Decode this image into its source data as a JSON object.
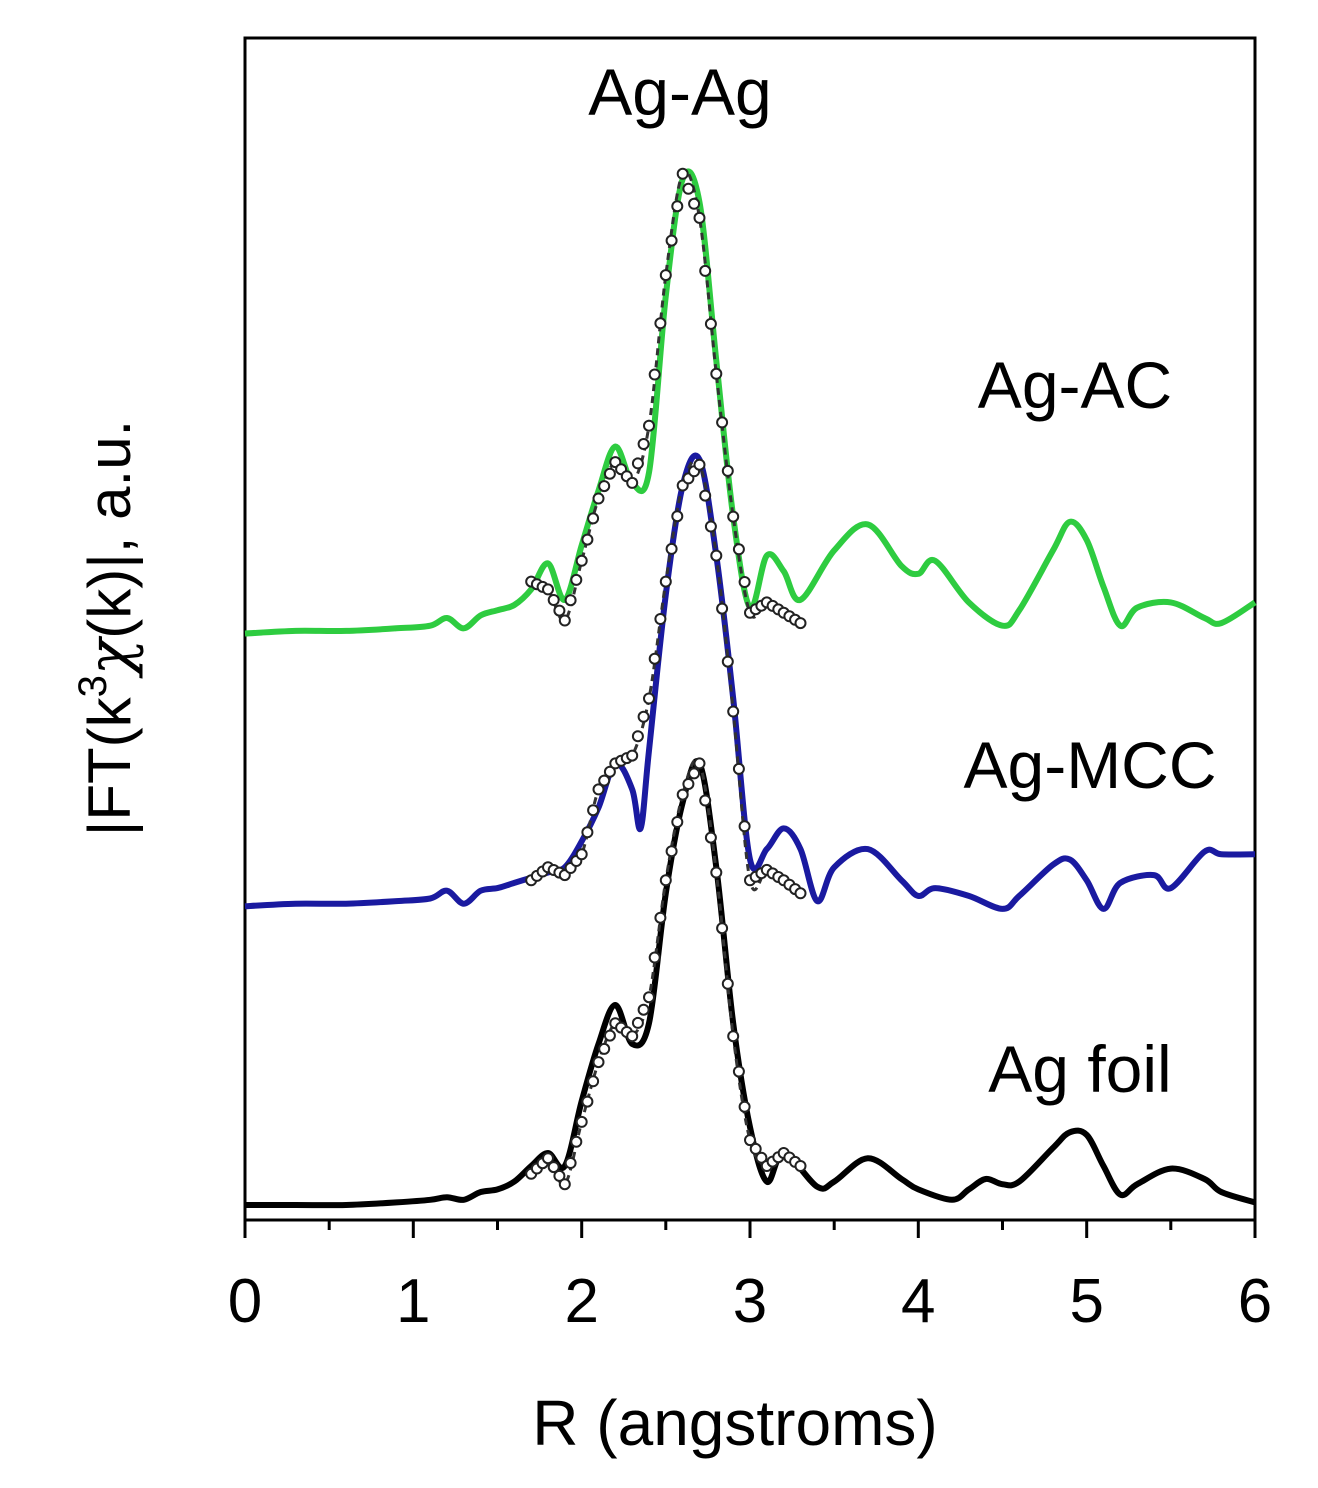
{
  "chart_data": {
    "type": "line",
    "title": "",
    "xlabel": "R (angstroms)",
    "ylabel_parts": {
      "prefix": "|FT(k",
      "superscript": "3",
      "chi": "χ",
      "suffix": "(k)|, a.u."
    },
    "xlim": [
      0,
      6
    ],
    "x_ticks": [
      "0",
      "1",
      "2",
      "3",
      "4",
      "5",
      "6"
    ],
    "grid": false,
    "annotations": [
      {
        "text": "Ag-Ag"
      }
    ],
    "series": [
      {
        "name": "Ag-AC",
        "color": "#2ecc40",
        "style": "solid",
        "offset": 2.2,
        "points": [
          [
            0,
            0.0
          ],
          [
            0.3,
            0.01
          ],
          [
            0.6,
            0.01
          ],
          [
            0.9,
            0.02
          ],
          [
            1.1,
            0.03
          ],
          [
            1.2,
            0.06
          ],
          [
            1.3,
            0.02
          ],
          [
            1.4,
            0.07
          ],
          [
            1.5,
            0.09
          ],
          [
            1.6,
            0.11
          ],
          [
            1.7,
            0.17
          ],
          [
            1.8,
            0.27
          ],
          [
            1.9,
            0.13
          ],
          [
            2.0,
            0.34
          ],
          [
            2.1,
            0.55
          ],
          [
            2.2,
            0.72
          ],
          [
            2.3,
            0.58
          ],
          [
            2.4,
            0.62
          ],
          [
            2.5,
            1.3
          ],
          [
            2.6,
            1.75
          ],
          [
            2.7,
            1.66
          ],
          [
            2.8,
            1.05
          ],
          [
            2.9,
            0.45
          ],
          [
            3.0,
            0.1
          ],
          [
            3.1,
            0.3
          ],
          [
            3.2,
            0.24
          ],
          [
            3.3,
            0.13
          ],
          [
            3.5,
            0.32
          ],
          [
            3.7,
            0.42
          ],
          [
            3.9,
            0.26
          ],
          [
            4.0,
            0.23
          ],
          [
            4.1,
            0.28
          ],
          [
            4.3,
            0.12
          ],
          [
            4.5,
            0.03
          ],
          [
            4.6,
            0.09
          ],
          [
            4.8,
            0.32
          ],
          [
            4.9,
            0.43
          ],
          [
            5.0,
            0.36
          ],
          [
            5.1,
            0.18
          ],
          [
            5.2,
            0.03
          ],
          [
            5.3,
            0.1
          ],
          [
            5.5,
            0.12
          ],
          [
            5.7,
            0.06
          ],
          [
            5.8,
            0.04
          ],
          [
            6.0,
            0.12
          ]
        ]
      },
      {
        "name": "Ag-MCC",
        "color": "#1a1aa0",
        "style": "solid",
        "offset": 1.15,
        "points": [
          [
            0,
            0.0
          ],
          [
            0.3,
            0.01
          ],
          [
            0.6,
            0.01
          ],
          [
            0.9,
            0.02
          ],
          [
            1.1,
            0.03
          ],
          [
            1.2,
            0.06
          ],
          [
            1.3,
            0.01
          ],
          [
            1.4,
            0.06
          ],
          [
            1.5,
            0.07
          ],
          [
            1.6,
            0.09
          ],
          [
            1.7,
            0.11
          ],
          [
            1.8,
            0.13
          ],
          [
            1.9,
            0.15
          ],
          [
            2.0,
            0.25
          ],
          [
            2.1,
            0.38
          ],
          [
            2.2,
            0.55
          ],
          [
            2.3,
            0.45
          ],
          [
            2.35,
            0.3
          ],
          [
            2.4,
            0.6
          ],
          [
            2.5,
            1.2
          ],
          [
            2.6,
            1.62
          ],
          [
            2.7,
            1.72
          ],
          [
            2.8,
            1.35
          ],
          [
            2.9,
            0.8
          ],
          [
            3.0,
            0.18
          ],
          [
            3.1,
            0.22
          ],
          [
            3.2,
            0.3
          ],
          [
            3.3,
            0.22
          ],
          [
            3.4,
            0.02
          ],
          [
            3.5,
            0.15
          ],
          [
            3.7,
            0.22
          ],
          [
            3.9,
            0.1
          ],
          [
            4.0,
            0.04
          ],
          [
            4.1,
            0.07
          ],
          [
            4.3,
            0.04
          ],
          [
            4.5,
            -0.01
          ],
          [
            4.6,
            0.04
          ],
          [
            4.8,
            0.16
          ],
          [
            4.9,
            0.18
          ],
          [
            5.0,
            0.1
          ],
          [
            5.1,
            -0.01
          ],
          [
            5.2,
            0.09
          ],
          [
            5.4,
            0.12
          ],
          [
            5.5,
            0.07
          ],
          [
            5.7,
            0.21
          ],
          [
            5.8,
            0.2
          ],
          [
            6.0,
            0.2
          ]
        ]
      },
      {
        "name": "Ag foil",
        "color": "#000000",
        "style": "solid",
        "offset": 0.0,
        "points": [
          [
            0,
            0.0
          ],
          [
            0.3,
            0.0
          ],
          [
            0.6,
            0.0
          ],
          [
            0.9,
            0.01
          ],
          [
            1.1,
            0.02
          ],
          [
            1.2,
            0.03
          ],
          [
            1.3,
            0.02
          ],
          [
            1.4,
            0.05
          ],
          [
            1.5,
            0.06
          ],
          [
            1.6,
            0.09
          ],
          [
            1.7,
            0.15
          ],
          [
            1.8,
            0.2
          ],
          [
            1.9,
            0.15
          ],
          [
            2.0,
            0.4
          ],
          [
            2.1,
            0.62
          ],
          [
            2.2,
            0.77
          ],
          [
            2.3,
            0.62
          ],
          [
            2.4,
            0.7
          ],
          [
            2.5,
            1.2
          ],
          [
            2.6,
            1.55
          ],
          [
            2.7,
            1.7
          ],
          [
            2.8,
            1.3
          ],
          [
            2.9,
            0.7
          ],
          [
            3.0,
            0.3
          ],
          [
            3.1,
            0.09
          ],
          [
            3.2,
            0.2
          ],
          [
            3.4,
            0.07
          ],
          [
            3.5,
            0.09
          ],
          [
            3.7,
            0.18
          ],
          [
            3.9,
            0.1
          ],
          [
            4.0,
            0.06
          ],
          [
            4.2,
            0.02
          ],
          [
            4.3,
            0.06
          ],
          [
            4.4,
            0.1
          ],
          [
            4.5,
            0.08
          ],
          [
            4.6,
            0.09
          ],
          [
            4.8,
            0.22
          ],
          [
            4.9,
            0.28
          ],
          [
            5.0,
            0.27
          ],
          [
            5.1,
            0.15
          ],
          [
            5.2,
            0.04
          ],
          [
            5.3,
            0.08
          ],
          [
            5.5,
            0.14
          ],
          [
            5.7,
            0.1
          ],
          [
            5.8,
            0.05
          ],
          [
            6.0,
            0.01
          ]
        ]
      },
      {
        "name": "",
        "color": "#333333",
        "style": "dashed-open-circles",
        "offset": 2.2,
        "points": [
          [
            1.7,
            0.2
          ],
          [
            1.8,
            0.17
          ],
          [
            1.9,
            0.05
          ],
          [
            2.0,
            0.28
          ],
          [
            2.1,
            0.52
          ],
          [
            2.2,
            0.66
          ],
          [
            2.3,
            0.58
          ],
          [
            2.4,
            0.8
          ],
          [
            2.5,
            1.38
          ],
          [
            2.6,
            1.77
          ],
          [
            2.7,
            1.6
          ],
          [
            2.8,
            1.0
          ],
          [
            2.9,
            0.45
          ],
          [
            3.0,
            0.08
          ],
          [
            3.1,
            0.12
          ],
          [
            3.2,
            0.08
          ],
          [
            3.3,
            0.04
          ]
        ]
      },
      {
        "name": "",
        "color": "#333333",
        "style": "dashed-open-circles",
        "offset": 1.15,
        "points": [
          [
            1.7,
            0.1
          ],
          [
            1.8,
            0.15
          ],
          [
            1.9,
            0.12
          ],
          [
            2.0,
            0.2
          ],
          [
            2.1,
            0.45
          ],
          [
            2.2,
            0.55
          ],
          [
            2.3,
            0.58
          ],
          [
            2.4,
            0.8
          ],
          [
            2.5,
            1.25
          ],
          [
            2.6,
            1.62
          ],
          [
            2.7,
            1.7
          ],
          [
            2.8,
            1.35
          ],
          [
            2.9,
            0.75
          ],
          [
            3.0,
            0.1
          ],
          [
            3.1,
            0.14
          ],
          [
            3.2,
            0.1
          ],
          [
            3.3,
            0.05
          ]
        ]
      },
      {
        "name": "",
        "color": "#333333",
        "style": "dashed-open-circles",
        "offset": 0.0,
        "points": [
          [
            1.7,
            0.12
          ],
          [
            1.8,
            0.18
          ],
          [
            1.9,
            0.08
          ],
          [
            2.0,
            0.32
          ],
          [
            2.1,
            0.55
          ],
          [
            2.2,
            0.7
          ],
          [
            2.3,
            0.65
          ],
          [
            2.4,
            0.8
          ],
          [
            2.5,
            1.25
          ],
          [
            2.6,
            1.58
          ],
          [
            2.7,
            1.7
          ],
          [
            2.8,
            1.28
          ],
          [
            2.9,
            0.65
          ],
          [
            3.0,
            0.25
          ],
          [
            3.1,
            0.15
          ],
          [
            3.2,
            0.2
          ],
          [
            3.3,
            0.15
          ]
        ]
      }
    ]
  }
}
